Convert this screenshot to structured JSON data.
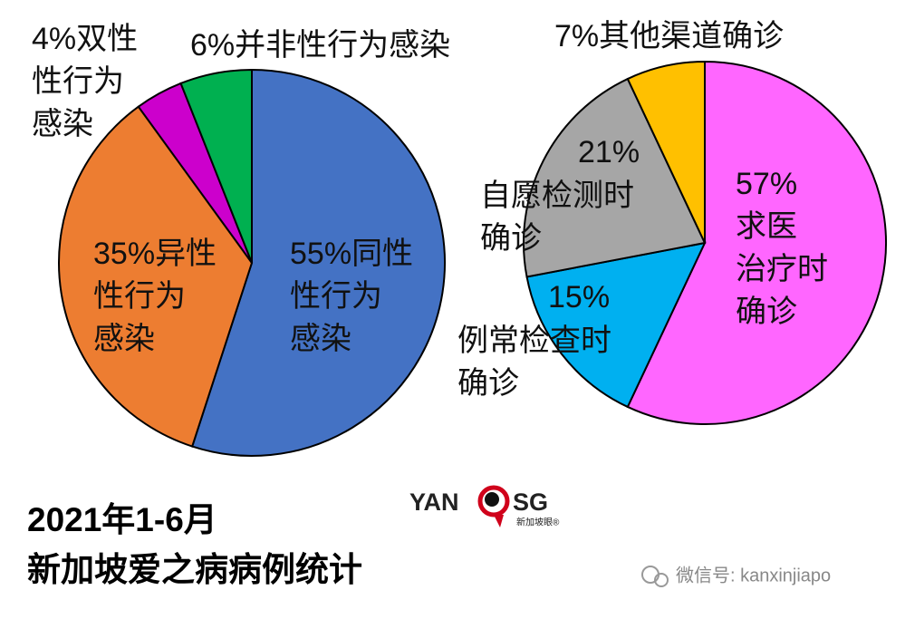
{
  "chart_data": [
    {
      "type": "pie",
      "categories": [
        [
          "同性",
          "性行为",
          "感染"
        ],
        [
          "异性",
          "性行为",
          "感染"
        ],
        [
          "双性",
          "性行为",
          "感染"
        ],
        [
          "并非性行为感染"
        ]
      ],
      "values": [
        55,
        35,
        4,
        6
      ],
      "value_labels": [
        "55%",
        "35%",
        "4%",
        "6%"
      ],
      "colors": [
        "#4472c4",
        "#ed7d31",
        "#cc00cc",
        "#00b050"
      ]
    },
    {
      "type": "pie",
      "categories": [
        [
          "求医",
          "治疗时",
          "确诊"
        ],
        [
          "例常检查时",
          "确诊"
        ],
        [
          "自愿检测时",
          "确诊"
        ],
        [
          "其他渠道确诊"
        ]
      ],
      "values": [
        57,
        15,
        21,
        7
      ],
      "value_labels": [
        "57%",
        "15%",
        "21%",
        "7%"
      ],
      "colors": [
        "#ff66ff",
        "#00b0f0",
        "#a6a6a6",
        "#ffc000"
      ]
    }
  ],
  "footer_title": [
    "2021年1-6月",
    "新加坡爱之病病例统计"
  ],
  "logo": {
    "left": "YAN",
    "right": "SG",
    "sub": "新加坡眼®"
  },
  "watermark": "微信号: kanxinjiapo"
}
